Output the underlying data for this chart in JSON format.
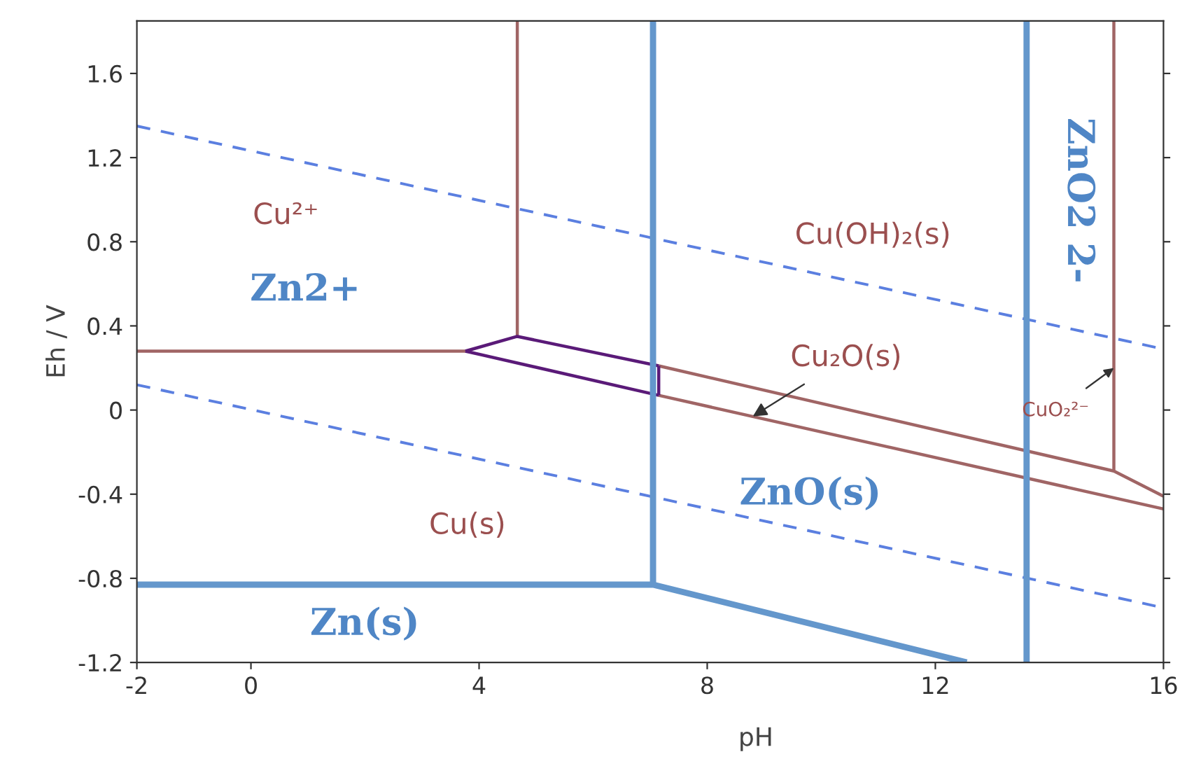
{
  "chart_data": {
    "type": "line",
    "xlabel": "pH",
    "ylabel": "Eh / V",
    "xlim": [
      -2,
      16
    ],
    "ylim": [
      -1.2,
      1.85
    ],
    "xticks": [
      -2,
      0,
      4,
      8,
      12,
      16
    ],
    "yticks": [
      -1.2,
      -0.8,
      -0.4,
      0,
      0.4,
      0.8,
      1.2,
      1.6
    ],
    "grid": false,
    "marker": "none",
    "series": [
      {
        "color": "#5b7fe0",
        "line_style": "dashed",
        "x": [
          -2,
          16
        ],
        "values": [
          1.35,
          0.29
        ]
      },
      {
        "color": "#5b7fe0",
        "line_style": "dashed",
        "x": [
          -2,
          16
        ],
        "values": [
          0.12,
          -0.94
        ]
      },
      {
        "color": "#a06565",
        "line_style": "solid",
        "x": [
          -2,
          3.76
        ],
        "values": [
          0.28,
          0.28
        ]
      },
      {
        "color": "#a06565",
        "line_style": "solid",
        "x": [
          4.67,
          4.67
        ],
        "values": [
          1.85,
          0.35
        ]
      },
      {
        "color": "#a06565",
        "line_style": "solid",
        "x": [
          7.15,
          15.13,
          16
        ],
        "values": [
          0.21,
          -0.29,
          -0.41
        ]
      },
      {
        "color": "#a06565",
        "line_style": "solid",
        "x": [
          7.15,
          16
        ],
        "values": [
          0.07,
          -0.47
        ]
      },
      {
        "color": "#a06565",
        "line_style": "solid",
        "x": [
          15.13,
          15.13
        ],
        "values": [
          1.85,
          -0.29
        ]
      },
      {
        "color": "#5a1a78",
        "line_style": "solid",
        "x": [
          3.76,
          4.67,
          7.15
        ],
        "values": [
          0.28,
          0.35,
          0.21
        ]
      },
      {
        "color": "#5a1a78",
        "line_style": "solid",
        "x": [
          3.76,
          7.15
        ],
        "values": [
          0.28,
          0.07
        ]
      },
      {
        "color": "#5a1a78",
        "line_style": "solid",
        "x": [
          7.15,
          7.15
        ],
        "values": [
          0.21,
          0.07
        ]
      },
      {
        "color": "#6497cc",
        "line_style": "solid",
        "x": [
          7.05,
          7.05
        ],
        "values": [
          1.85,
          -0.83
        ]
      },
      {
        "color": "#6497cc",
        "line_style": "solid",
        "x": [
          -2,
          7.05,
          12.55
        ],
        "values": [
          -0.83,
          -0.83,
          -1.2
        ]
      },
      {
        "color": "#6497cc",
        "line_style": "solid",
        "x": [
          13.6,
          13.6
        ],
        "values": [
          1.85,
          -1.2
        ]
      }
    ],
    "annotations": [
      "Cu²⁺",
      "Zn2+",
      "Cu(OH)₂(s)",
      {
        "text": "Cu₂O(s)",
        "x": 8.8,
        "y": -0.03
      },
      {
        "text": "CuO₂²⁻",
        "x": 15.13,
        "y": 0.2
      },
      "ZnO2 2-",
      "ZnO(s)",
      "Cu(s)",
      "Zn(s)"
    ]
  }
}
